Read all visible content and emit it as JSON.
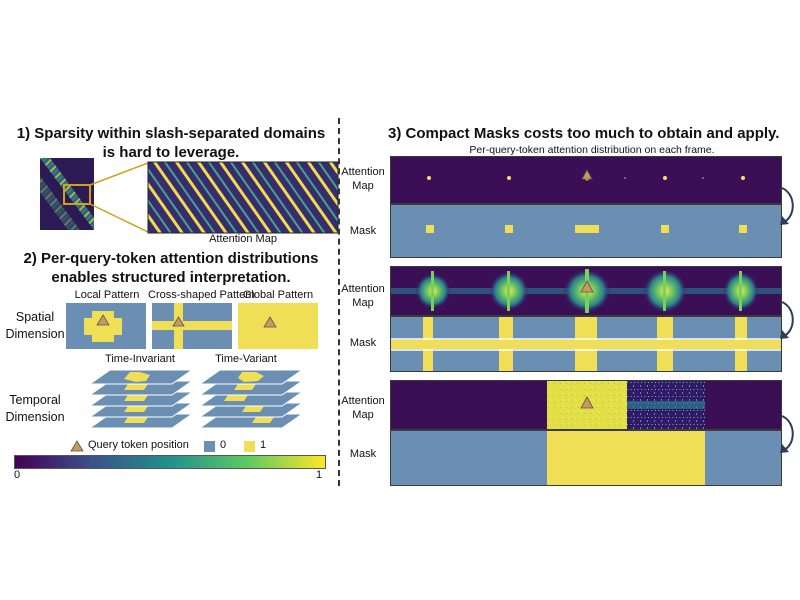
{
  "colors": {
    "attention_bg": "#3a0f56",
    "mask_zero": "#6b8fb3",
    "mask_one": "#f0de56",
    "query_marker": "#c89a5a",
    "connector": "#d4a017",
    "arrow": "#2c3e55"
  },
  "left": {
    "section1_title": "1) Sparsity within slash-separated domains is hard to leverage.",
    "attention_map_caption": "Attention Map",
    "section2_title": "2) Per-query-token attention distributions enables structured interpretation.",
    "patterns": [
      "Local Pattern",
      "Cross-shaped Pattern",
      "Global Pattern"
    ],
    "spatial_label": "Spatial Dimension",
    "time_invariant": "Time-Invariant",
    "time_variant": "Time-Variant",
    "temporal_label": "Temporal Dimension",
    "legend": {
      "query": "Query token position",
      "zero": "0",
      "one": "1"
    },
    "colorbar": {
      "min": "0",
      "max": "1"
    }
  },
  "right": {
    "section3_title": "3) Compact Masks costs too much to obtain and apply.",
    "subtitle": "Per-query-token attention distribution on each frame.",
    "attention_label": "Attention Map",
    "mask_label": "Mask"
  }
}
